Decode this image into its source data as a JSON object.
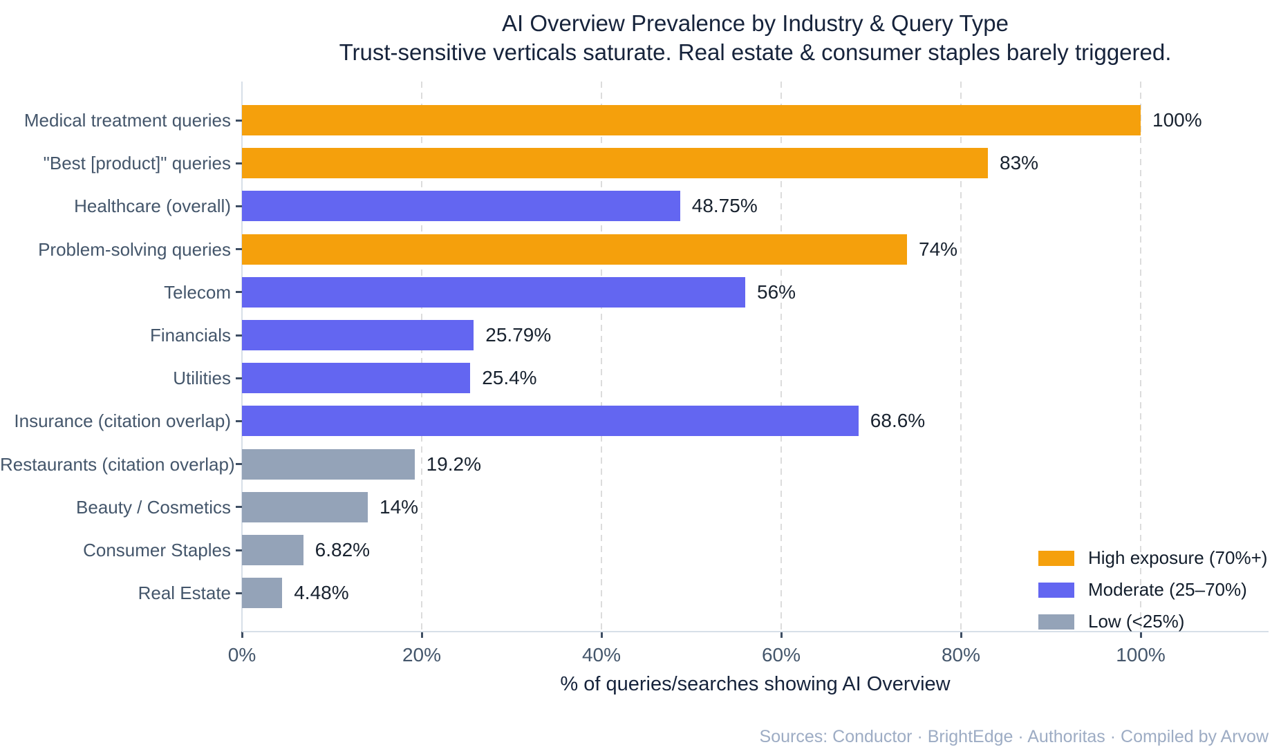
{
  "header": {
    "title": "AI Overview Prevalence by Industry & Query Type",
    "subtitle": "Trust-sensitive verticals saturate. Real estate & consumer staples barely triggered."
  },
  "chart_data": {
    "type": "bar",
    "orientation": "horizontal",
    "title": "AI Overview Prevalence by Industry & Query Type",
    "subtitle": "Trust-sensitive verticals saturate. Real estate & consumer staples barely triggered.",
    "xlabel": "% of queries/searches showing AI Overview",
    "xlim": [
      0,
      114
    ],
    "grid": "vertical-dashed",
    "legend_position": "lower-right",
    "x_ticks": [
      {
        "value": 0,
        "label": "0%"
      },
      {
        "value": 20,
        "label": "20%"
      },
      {
        "value": 40,
        "label": "40%"
      },
      {
        "value": 60,
        "label": "60%"
      },
      {
        "value": 80,
        "label": "80%"
      },
      {
        "value": 100,
        "label": "100%"
      }
    ],
    "bars": [
      {
        "category": "Medical treatment queries",
        "value": 100,
        "label": "100%",
        "tier": "high"
      },
      {
        "category": "\"Best [product]\" queries",
        "value": 83,
        "label": "83%",
        "tier": "high"
      },
      {
        "category": "Healthcare (overall)",
        "value": 48.75,
        "label": "48.75%",
        "tier": "moderate"
      },
      {
        "category": "Problem-solving queries",
        "value": 74,
        "label": "74%",
        "tier": "high"
      },
      {
        "category": "Telecom",
        "value": 56,
        "label": "56%",
        "tier": "moderate"
      },
      {
        "category": "Financials",
        "value": 25.79,
        "label": "25.79%",
        "tier": "moderate"
      },
      {
        "category": "Utilities",
        "value": 25.4,
        "label": "25.4%",
        "tier": "moderate"
      },
      {
        "category": "Insurance (citation overlap)",
        "value": 68.6,
        "label": "68.6%",
        "tier": "moderate"
      },
      {
        "category": "Restaurants (citation overlap)",
        "value": 19.2,
        "label": "19.2%",
        "tier": "low"
      },
      {
        "category": "Beauty / Cosmetics",
        "value": 14,
        "label": "14%",
        "tier": "low"
      },
      {
        "category": "Consumer Staples",
        "value": 6.82,
        "label": "6.82%",
        "tier": "low"
      },
      {
        "category": "Real Estate",
        "value": 4.48,
        "label": "4.48%",
        "tier": "low"
      }
    ]
  },
  "legend": {
    "items": [
      {
        "label": "High exposure (70%+)",
        "tier": "high"
      },
      {
        "label": "Moderate (25–70%)",
        "tier": "moderate"
      },
      {
        "label": "Low (<25%)",
        "tier": "low"
      }
    ]
  },
  "colors": {
    "high": "#F5A00C",
    "moderate": "#6366F1",
    "low": "#94A3B8",
    "title_text": "#16233B",
    "axis_text": "#44566B",
    "value_text": "#18222F",
    "grid": "#DCDCDC",
    "axis_line": "#D7DFE8",
    "tick": "#3E4E63",
    "source_text": "#9DACC4"
  },
  "footer": {
    "source": "Sources: Conductor · BrightEdge · Authoritas · Compiled by Arvow"
  }
}
